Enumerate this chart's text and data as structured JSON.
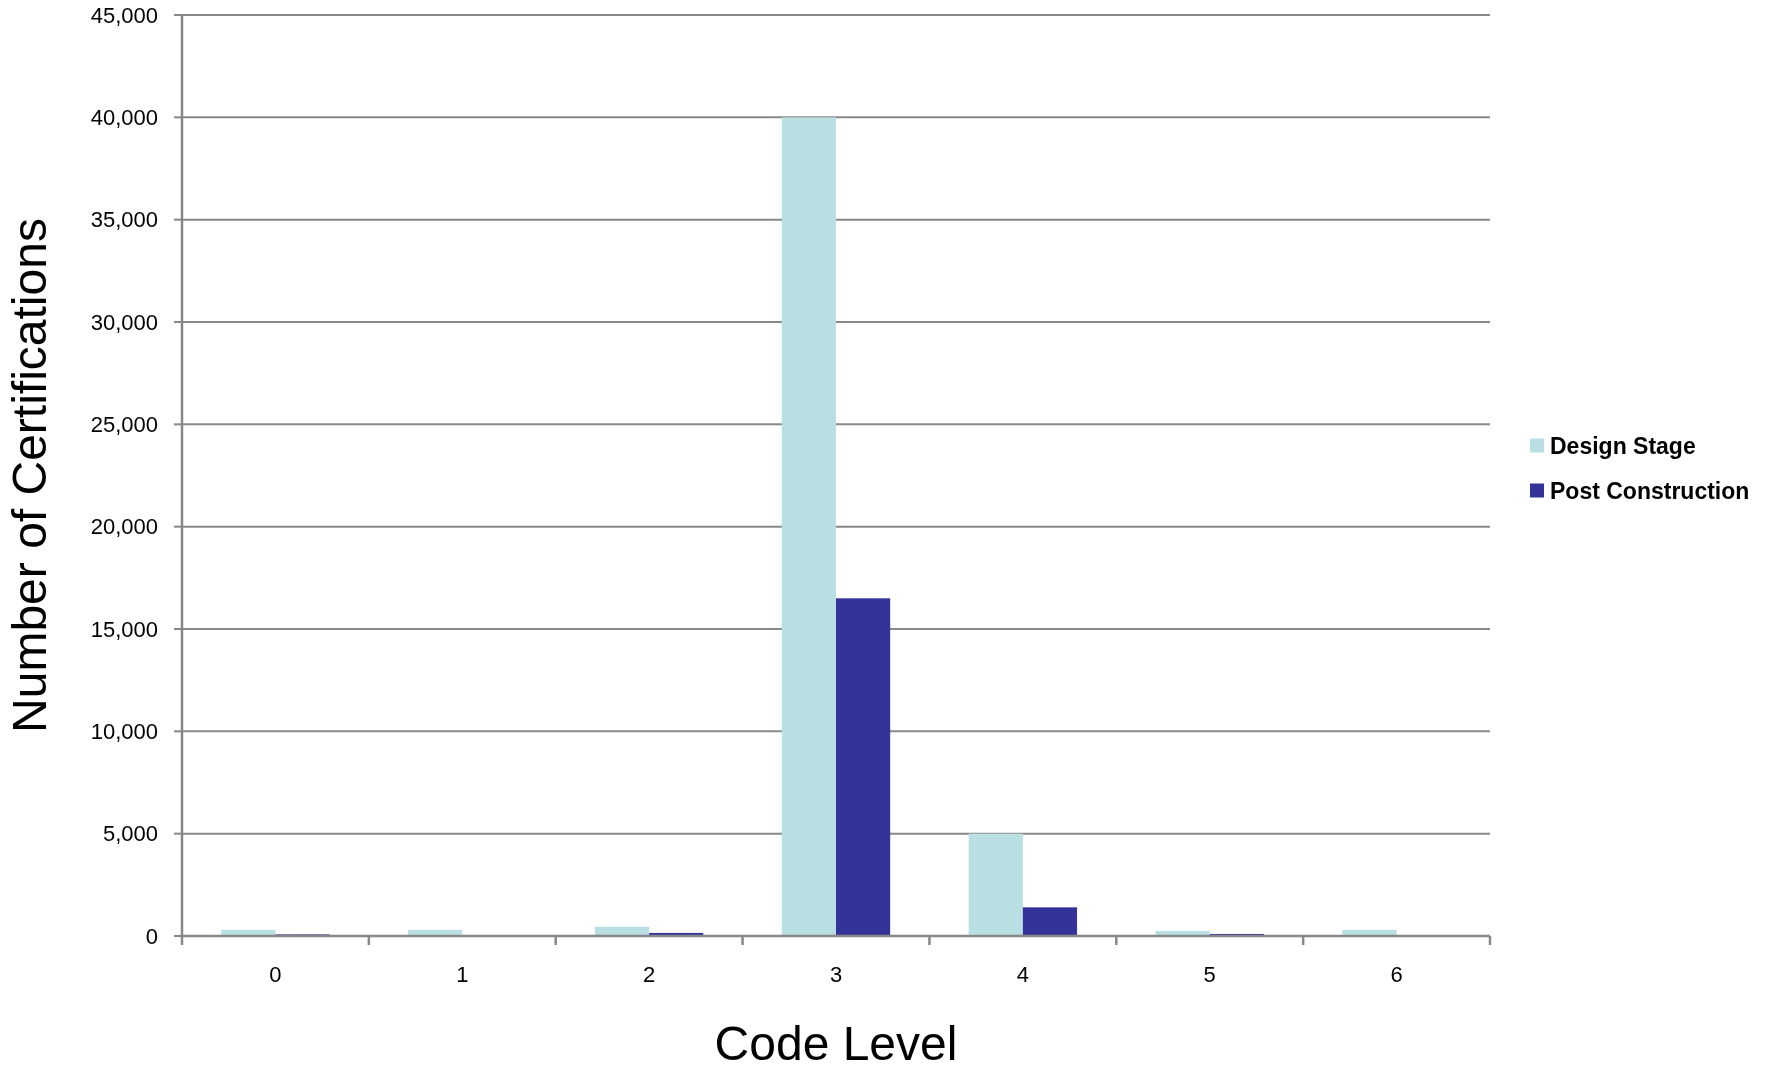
{
  "chart_data": {
    "type": "bar",
    "xlabel": "Code Level",
    "ylabel": "Number of Certifications",
    "categories": [
      "0",
      "1",
      "2",
      "3",
      "4",
      "5",
      "6"
    ],
    "series": [
      {
        "name": "Design Stage",
        "color": "#b9dfe2",
        "values": [
          300,
          300,
          450,
          40000,
          5000,
          250,
          300
        ]
      },
      {
        "name": "Post Construction",
        "color": "#333399",
        "values": [
          80,
          0,
          150,
          16500,
          1400,
          100,
          0
        ]
      }
    ],
    "ylim": [
      0,
      45000
    ],
    "yticks": [
      {
        "value": 0,
        "label": "0"
      },
      {
        "value": 5000,
        "label": "5,000"
      },
      {
        "value": 10000,
        "label": "10,000"
      },
      {
        "value": 15000,
        "label": "15,000"
      },
      {
        "value": 20000,
        "label": "20,000"
      },
      {
        "value": 25000,
        "label": "25,000"
      },
      {
        "value": 30000,
        "label": "30,000"
      },
      {
        "value": 35000,
        "label": "35,000"
      },
      {
        "value": 40000,
        "label": "40,000"
      },
      {
        "value": 45000,
        "label": "45,000"
      }
    ],
    "grid": "y",
    "legend": "right"
  }
}
